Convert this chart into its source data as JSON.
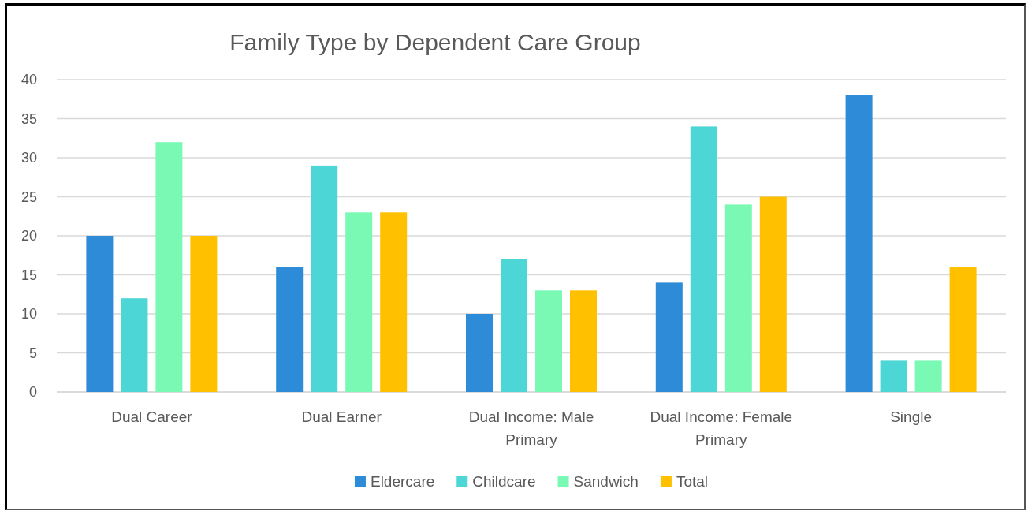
{
  "chart_data": {
    "type": "bar",
    "title": "Family Type by Dependent Care Group",
    "categories": [
      "Dual Career",
      "Dual Earner",
      "Dual Income: Male Primary",
      "Dual Income: Female Primary",
      "Single"
    ],
    "series": [
      {
        "name": "Eldercare",
        "color": "#2e8bd8",
        "values": [
          20,
          16,
          10,
          14,
          38
        ]
      },
      {
        "name": "Childcare",
        "color": "#4dd6d6",
        "values": [
          12,
          29,
          17,
          34,
          4
        ]
      },
      {
        "name": "Sandwich",
        "color": "#79f9b4",
        "values": [
          32,
          23,
          13,
          24,
          4
        ]
      },
      {
        "name": "Total",
        "color": "#ffc000",
        "values": [
          20,
          23,
          13,
          25,
          16
        ]
      }
    ],
    "ylim": [
      0,
      40
    ],
    "yticks": [
      0,
      5,
      10,
      15,
      20,
      25,
      30,
      35,
      40
    ],
    "grid": "y",
    "legend": "bottom"
  }
}
